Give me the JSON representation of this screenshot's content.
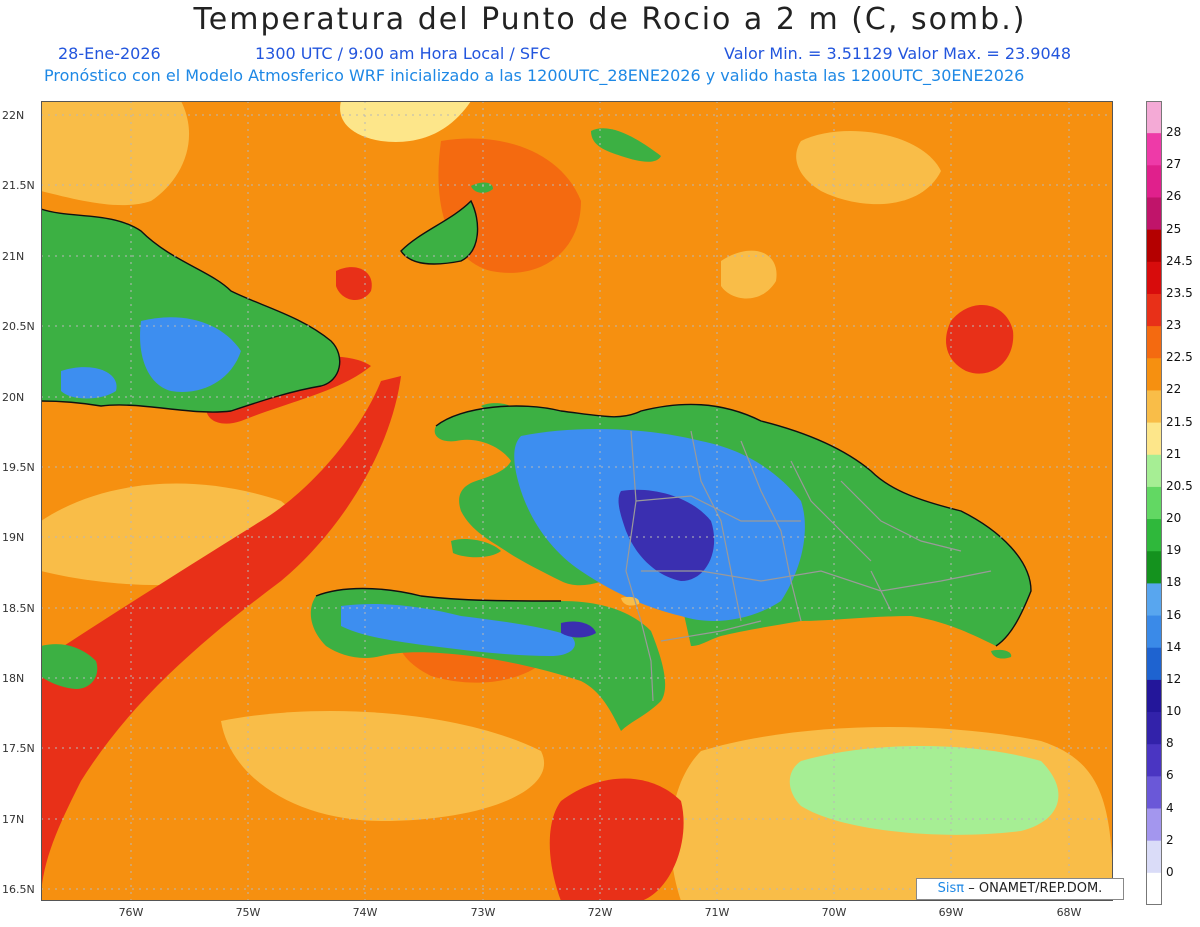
{
  "header": {
    "title": "Temperatura del Punto de Rocio a 2 m (C, somb.)",
    "date": "28-Ene-2026",
    "time": "1300 UTC / 9:00 am Hora Local / SFC",
    "minmax": "Valor Min. = 3.51129   Valor Max. = 23.9048",
    "model_line": "Pronóstico con el Modelo Atmosferico WRF inicializado a las 1200UTC_28ENE2026 y valido hasta las  1200UTC_30ENE2026"
  },
  "map": {
    "lat_labels": [
      "22N",
      "21.5N",
      "21N",
      "20.5N",
      "20N",
      "19.5N",
      "19N",
      "18.5N",
      "18N",
      "17.5N",
      "17N",
      "16.5N"
    ],
    "lon_labels": [
      "76W",
      "75W",
      "74W",
      "73W",
      "72W",
      "71W",
      "70W",
      "69W",
      "68W"
    ],
    "ocean_color": "#f4a020",
    "land_high_color": "#3cb043",
    "land_mid_color": "#3d8ef0",
    "land_low_color": "#3a2fb0"
  },
  "colorbar": {
    "labels": [
      "28",
      "27",
      "26",
      "25",
      "24.5",
      "23.5",
      "23",
      "22.5",
      "22",
      "21.5",
      "21",
      "20.5",
      "20",
      "19",
      "18",
      "16",
      "14",
      "12",
      "10",
      "8",
      "6",
      "4",
      "2",
      "0"
    ],
    "colors": [
      "#f4aad6",
      "#ee3aa8",
      "#e0208c",
      "#c0146a",
      "#b40000",
      "#d80c0c",
      "#e83018",
      "#f46a10",
      "#f69010",
      "#f9bd48",
      "#fde68a",
      "#a6ee94",
      "#62d863",
      "#2fb83b",
      "#14921e",
      "#58a6ef",
      "#3a8ae8",
      "#1e63d0",
      "#23169a",
      "#3222aa",
      "#4a35c2",
      "#6a58d8",
      "#a396ee",
      "#dadcf8"
    ]
  },
  "credit": {
    "sis": "Sisπ",
    "text": "– ONAMET/REP.DOM."
  }
}
